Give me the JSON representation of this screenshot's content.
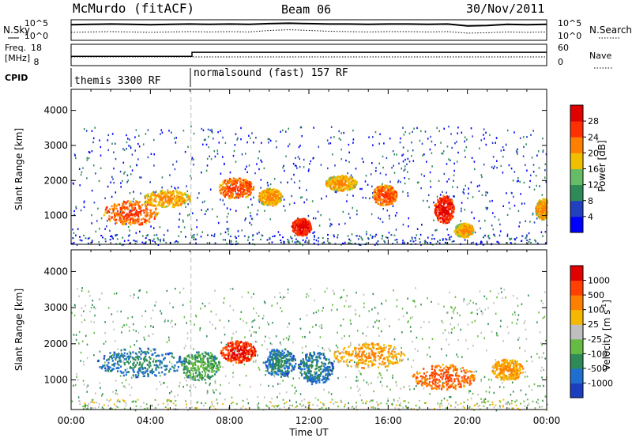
{
  "header": {
    "station": "McMurdo (fitACF)",
    "beam": "Beam 06",
    "date": "30/Nov/2011"
  },
  "side_labels": {
    "nsky": "N.Sky",
    "nsearch": "N.Search",
    "freq_line1": "Freq.",
    "freq_line2": "[MHz]",
    "nave": "Nave",
    "cpid": "CPID"
  },
  "chart_data": [
    {
      "type": "line",
      "panel": "noise",
      "left_ticks": [
        "10^5",
        "10^0"
      ],
      "right_ticks": [
        "10^5",
        "10^0"
      ],
      "series": [
        {
          "name": "N.Sky",
          "x": [
            0,
            1,
            2,
            3,
            4,
            5,
            6,
            7,
            8,
            9,
            10,
            11,
            12,
            13,
            14,
            15,
            16,
            17,
            18,
            19,
            20,
            21,
            22,
            23,
            24
          ],
          "values": [
            4.1,
            4.2,
            4.3,
            4.2,
            4.1,
            4.2,
            4.3,
            4.2,
            4.3,
            4.2,
            4.4,
            4.5,
            4.4,
            4.3,
            4.3,
            4.2,
            4.3,
            4.3,
            4.2,
            4.3,
            3.8,
            3.9,
            4.2,
            4.1,
            4.2
          ]
        },
        {
          "name": "N.Search",
          "x": [
            0,
            1,
            2,
            3,
            4,
            5,
            6,
            7,
            8,
            9,
            10,
            11,
            12,
            13,
            14,
            15,
            16,
            17,
            18,
            19,
            20,
            21,
            22,
            23,
            24
          ],
          "values": [
            2.1,
            2.2,
            2.3,
            2.2,
            2.1,
            2.2,
            2.3,
            2.2,
            2.3,
            2.2,
            2.6,
            2.8,
            2.6,
            2.4,
            2.3,
            2.2,
            2.3,
            2.3,
            2.2,
            2.3,
            1.9,
            2.0,
            2.2,
            2.1,
            2.2
          ]
        }
      ]
    },
    {
      "type": "line",
      "panel": "frequency",
      "left_ticks": [
        "18",
        "8"
      ],
      "right_ticks": [
        "60",
        "0"
      ],
      "series": [
        {
          "name": "Freq.",
          "x": [
            0,
            6.1,
            6.1,
            24
          ],
          "values": [
            13.3,
            13.3,
            15.7,
            15.7
          ]
        },
        {
          "name": "Nave",
          "x": [
            0,
            24
          ],
          "values": [
            30,
            30
          ]
        }
      ]
    },
    {
      "type": "table",
      "panel": "cpid",
      "segments": [
        {
          "label": "themis 3300 RF",
          "start_hour": 0,
          "end_hour": 6.05
        },
        {
          "label": "normalsound (fast) 157 RF",
          "start_hour": 6.05,
          "end_hour": 24
        }
      ]
    },
    {
      "type": "heatmap",
      "panel": "power",
      "ylabel": "Slant Range [km]",
      "yticks": [
        1000,
        2000,
        3000,
        4000
      ],
      "ylim": [
        180,
        4600
      ],
      "colorbar_label": "Power [dB]",
      "colorbar_ticks": [
        4,
        8,
        12,
        16,
        20,
        24,
        28
      ],
      "colors": [
        "#0000ff",
        "#2040c0",
        "#2e8b57",
        "#66bb66",
        "#f0c000",
        "#ff8000",
        "#ff3000",
        "#e00000"
      ],
      "blobs": [
        {
          "t": 3.0,
          "r": 1100,
          "dt": 1.4,
          "dr": 350,
          "level": 6
        },
        {
          "t": 4.8,
          "r": 1500,
          "dt": 1.2,
          "dr": 250,
          "level": 5
        },
        {
          "t": 8.3,
          "r": 1800,
          "dt": 0.9,
          "dr": 300,
          "level": 6
        },
        {
          "t": 10.0,
          "r": 1550,
          "dt": 0.6,
          "dr": 250,
          "level": 5
        },
        {
          "t": 11.6,
          "r": 700,
          "dt": 0.5,
          "dr": 250,
          "level": 7
        },
        {
          "t": 13.6,
          "r": 1950,
          "dt": 0.8,
          "dr": 220,
          "level": 5
        },
        {
          "t": 15.8,
          "r": 1600,
          "dt": 0.6,
          "dr": 300,
          "level": 6
        },
        {
          "t": 18.8,
          "r": 1200,
          "dt": 0.5,
          "dr": 400,
          "level": 7
        },
        {
          "t": 19.8,
          "r": 600,
          "dt": 0.5,
          "dr": 200,
          "level": 5
        },
        {
          "t": 23.8,
          "r": 1200,
          "dt": 0.4,
          "dr": 300,
          "level": 5
        }
      ]
    },
    {
      "type": "heatmap",
      "panel": "velocity",
      "ylabel": "Slant Range [km]",
      "yticks": [
        1000,
        2000,
        3000,
        4000
      ],
      "ylim": [
        180,
        4600
      ],
      "colorbar_label": "Velocity [m s",
      "colorbar_label_sup": "-1",
      "colorbar_label_end": "]",
      "colorbar_ticks": [
        "1000",
        "500",
        "100",
        "25",
        "-25",
        "-100",
        "-500",
        "-1000"
      ],
      "colors": [
        "#1c3fbf",
        "#1f6fd0",
        "#2e8b57",
        "#66bb44",
        "#bfbfbf",
        "#f5b800",
        "#ff8000",
        "#ff4000",
        "#e00000"
      ],
      "blobs": [
        {
          "t": 3.5,
          "r": 1500,
          "dt": 2.2,
          "dr": 400,
          "level": 2
        },
        {
          "t": 6.5,
          "r": 1400,
          "dt": 1.0,
          "dr": 400,
          "level": 3
        },
        {
          "t": 8.4,
          "r": 1800,
          "dt": 0.9,
          "dr": 300,
          "level": 8
        },
        {
          "t": 10.5,
          "r": 1500,
          "dt": 0.8,
          "dr": 400,
          "level": 2
        },
        {
          "t": 12.3,
          "r": 1350,
          "dt": 0.9,
          "dr": 450,
          "level": 2
        },
        {
          "t": 15.0,
          "r": 1700,
          "dt": 1.8,
          "dr": 350,
          "level": 6
        },
        {
          "t": 18.8,
          "r": 1100,
          "dt": 1.6,
          "dr": 350,
          "level": 7
        },
        {
          "t": 22.0,
          "r": 1300,
          "dt": 0.8,
          "dr": 300,
          "level": 6
        }
      ]
    }
  ],
  "xaxis": {
    "ticks": [
      "00:00",
      "04:00",
      "08:00",
      "12:00",
      "16:00",
      "20:00",
      "00:00"
    ],
    "label": "Time UT"
  }
}
